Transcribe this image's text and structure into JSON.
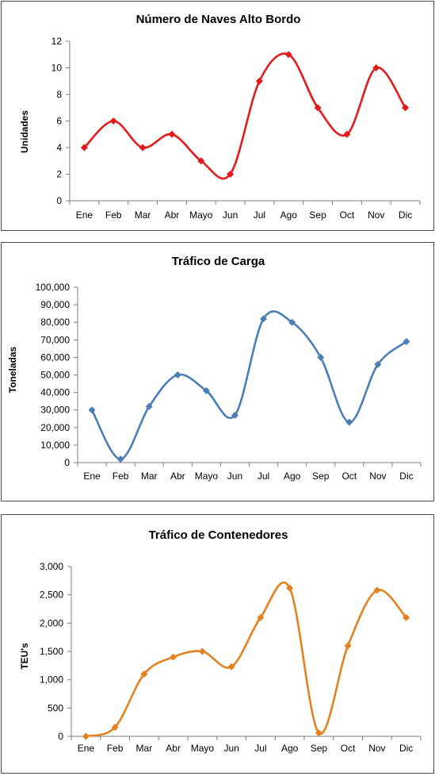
{
  "chart_data": [
    {
      "type": "line",
      "smooth": true,
      "title": "Número de Naves Alto Bordo",
      "xlabel": "",
      "ylabel": "Unidades",
      "categories": [
        "Ene",
        "Feb",
        "Mar",
        "Abr",
        "Mayo",
        "Jun",
        "Jul",
        "Ago",
        "Sep",
        "Oct",
        "Nov",
        "Dic"
      ],
      "series": [
        {
          "values": [
            4,
            6,
            4,
            5,
            3,
            2,
            9,
            11,
            7,
            5,
            10,
            7
          ]
        }
      ],
      "ylim": [
        0,
        12
      ],
      "yticks": [
        0,
        2,
        4,
        6,
        8,
        10,
        12
      ],
      "yticklabels": [
        "0",
        "2",
        "4",
        "6",
        "8",
        "10",
        "12"
      ],
      "color": "#e31a1c",
      "grid": false,
      "legend": "none"
    },
    {
      "type": "line",
      "smooth": true,
      "title": "Tráfico de Carga",
      "xlabel": "",
      "ylabel": "Toneladas",
      "categories": [
        "Ene",
        "Feb",
        "Mar",
        "Abr",
        "Mayo",
        "Jun",
        "Jul",
        "Ago",
        "Sep",
        "Oct",
        "Nov",
        "Dic"
      ],
      "series": [
        {
          "values": [
            30000,
            2000,
            32000,
            50000,
            41000,
            27000,
            82000,
            80000,
            60000,
            23000,
            56000,
            69000
          ]
        }
      ],
      "ylim": [
        0,
        100000
      ],
      "yticks": [
        0,
        10000,
        20000,
        30000,
        40000,
        50000,
        60000,
        70000,
        80000,
        90000,
        100000
      ],
      "yticklabels": [
        "0",
        "10,000",
        "20,000",
        "30,000",
        "40,000",
        "50,000",
        "60,000",
        "70,000",
        "80,000",
        "90,000",
        "100,000"
      ],
      "color": "#4a7eb5",
      "grid": false,
      "legend": "none"
    },
    {
      "type": "line",
      "smooth": true,
      "title": "Tráfico de Contenedores",
      "xlabel": "",
      "ylabel": "TEU's",
      "categories": [
        "Ene",
        "Feb",
        "Mar",
        "Abr",
        "Mayo",
        "Jun",
        "Jul",
        "Ago",
        "Sep",
        "Oct",
        "Nov",
        "Dic"
      ],
      "series": [
        {
          "values": [
            0,
            160,
            1100,
            1400,
            1500,
            1230,
            2100,
            2620,
            60,
            1600,
            2580,
            2100
          ]
        }
      ],
      "ylim": [
        0,
        3000
      ],
      "yticks": [
        0,
        500,
        1000,
        1500,
        2000,
        2500,
        3000
      ],
      "yticklabels": [
        "0",
        "500",
        "1,000",
        "1,500",
        "2,000",
        "2,500",
        "3,000"
      ],
      "color": "#e6801f",
      "grid": false,
      "legend": "none"
    }
  ]
}
